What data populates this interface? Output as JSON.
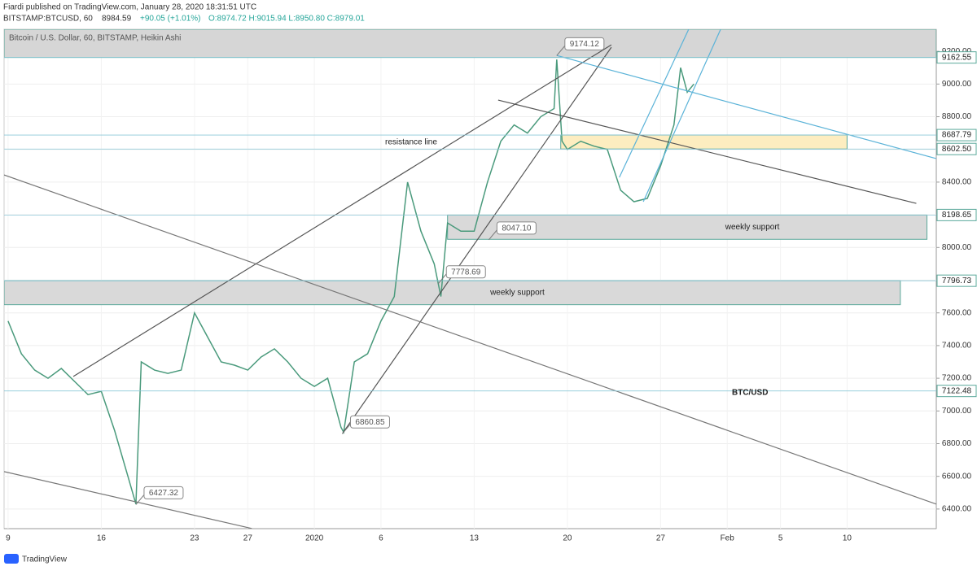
{
  "header": {
    "author_line": "Fiardi published on TradingView.com, January 28, 2020 18:31:51 UTC",
    "symbol": "BITSTAMP:BTCUSD, 60",
    "last": "8984.59",
    "change": "+90.05 (+1.01%)",
    "ohlc": "O:8974.72 H:9015.94 L:8950.80 C:8979.01"
  },
  "footer": {
    "brand": "TradingView"
  },
  "chart_data": {
    "type": "line",
    "title": "Bitcoin / U.S. Dollar, 60, BITSTAMP, Heikin Ashi",
    "color": "#4a9a7c",
    "x": [
      0,
      1,
      2,
      3,
      4,
      5,
      6,
      7,
      8,
      9,
      9.6,
      10,
      11,
      12,
      13,
      14,
      15,
      16,
      17,
      18,
      19,
      20,
      21,
      22,
      23,
      24,
      25,
      25.2,
      26,
      27,
      28,
      29,
      30,
      31,
      32,
      32.5,
      33,
      34,
      35,
      36,
      37,
      38,
      39,
      40,
      41,
      41.2,
      41.6,
      42,
      43,
      44,
      45,
      46,
      47,
      48,
      49,
      50,
      50.5,
      51,
      51.5
    ],
    "values": [
      7550,
      7350,
      7250,
      7200,
      7260,
      7180,
      7100,
      7120,
      6880,
      6600,
      6430,
      7300,
      7250,
      7230,
      7250,
      7600,
      7450,
      7300,
      7280,
      7250,
      7330,
      7380,
      7300,
      7200,
      7150,
      7200,
      6900,
      6870,
      7300,
      7350,
      7550,
      7700,
      8400,
      8100,
      7900,
      7700,
      8150,
      8100,
      8100,
      8400,
      8650,
      8750,
      8700,
      8800,
      8850,
      9150,
      8650,
      8600,
      8650,
      8620,
      8600,
      8350,
      8280,
      8300,
      8500,
      8750,
      9100,
      8950,
      9000
    ],
    "xlim": [
      -0.3,
      69.7
    ],
    "ylim": [
      6280,
      9335
    ],
    "xticks": [
      {
        "value": 0,
        "label": "9"
      },
      {
        "value": 7,
        "label": "16"
      },
      {
        "value": 14,
        "label": "23"
      },
      {
        "value": 18,
        "label": "27"
      },
      {
        "value": 23,
        "label": "2020"
      },
      {
        "value": 28,
        "label": "6"
      },
      {
        "value": 35,
        "label": "13"
      },
      {
        "value": 42,
        "label": "20"
      },
      {
        "value": 49,
        "label": "27"
      },
      {
        "value": 54,
        "label": "Feb"
      },
      {
        "value": 58,
        "label": "5"
      },
      {
        "value": 63,
        "label": "10"
      }
    ],
    "yticks": [
      {
        "value": 6400,
        "label": "6400.00"
      },
      {
        "value": 6600,
        "label": "6600.00"
      },
      {
        "value": 6800,
        "label": "6800.00"
      },
      {
        "value": 7000,
        "label": "7000.00"
      },
      {
        "value": 7200,
        "label": "7200.00"
      },
      {
        "value": 7400,
        "label": "7400.00"
      },
      {
        "value": 7600,
        "label": "7600.00"
      },
      {
        "value": 7800,
        "label": "7800.00"
      },
      {
        "value": 8000,
        "label": "8000.00"
      },
      {
        "value": 8200,
        "label": "8200.00"
      },
      {
        "value": 8400,
        "label": "8400.00"
      },
      {
        "value": 8600,
        "label": "8600.00"
      },
      {
        "value": 8800,
        "label": "8800.00"
      },
      {
        "value": 9000,
        "label": "9000.00"
      },
      {
        "value": 9200,
        "label": "9200.00"
      }
    ],
    "grid": true,
    "price_levels": [
      9162.55,
      8687.79,
      {
        "value": 8602.5,
        "label": "8602.50"
      },
      8198.65,
      7796.73,
      7122.48
    ],
    "zones": [
      {
        "from": 9162.55,
        "to": 9335,
        "start": -0.3,
        "end": 69.7,
        "color": "#d6d6d6"
      },
      {
        "from": 8602.5,
        "to": 8687.79,
        "start": 41.5,
        "end": 63,
        "color": "#fdedc0"
      },
      {
        "from": 8050,
        "to": 8198.65,
        "start": 33,
        "end": 69,
        "color": "#d9d9d9",
        "label": "weekly support"
      },
      {
        "from": 7650,
        "to": 7796.73,
        "start": -0.3,
        "end": 67,
        "color": "#d9d9d9",
        "label": "weekly support"
      }
    ],
    "trendlines": [
      {
        "x": [
          4.9,
          45.3
        ],
        "y": [
          7211,
          9240
        ],
        "color": "#555555"
      },
      {
        "x": [
          25.1,
          45.3
        ],
        "y": [
          6860.85,
          9225
        ],
        "color": "#555555"
      },
      {
        "x": [
          -0.3,
          69.7
        ],
        "y": [
          8444,
          6430
        ],
        "color": "#777777"
      },
      {
        "x": [
          -0.3,
          18.3
        ],
        "y": [
          6629,
          6281
        ],
        "color": "#777777"
      },
      {
        "x": [
          36.8,
          68.2
        ],
        "y": [
          8902,
          8270
        ],
        "color": "#555555"
      },
      {
        "x": [
          41.2,
          69.7
        ],
        "y": [
          9175,
          8544
        ],
        "color": "#5bb3d8"
      },
      {
        "x": [
          45.9,
          51.1
        ],
        "y": [
          8429,
          9334
        ],
        "color": "#5bb3d8"
      },
      {
        "x": [
          47.7,
          53.5
        ],
        "y": [
          8280,
          9334
        ],
        "color": "#5bb3d8"
      }
    ],
    "annotations": [
      {
        "x": 9.6,
        "value": 6427.32
      },
      {
        "x": 25.1,
        "value": 6860.85
      },
      {
        "x": 32.3,
        "value": 7778.69
      },
      {
        "x": 36.1,
        "value": 8047.1,
        "label": "8047.10"
      },
      {
        "x": 41.2,
        "value": 9174.12
      }
    ],
    "texts": {
      "resistance": "resistance line",
      "pair": "BTC/USD"
    }
  }
}
